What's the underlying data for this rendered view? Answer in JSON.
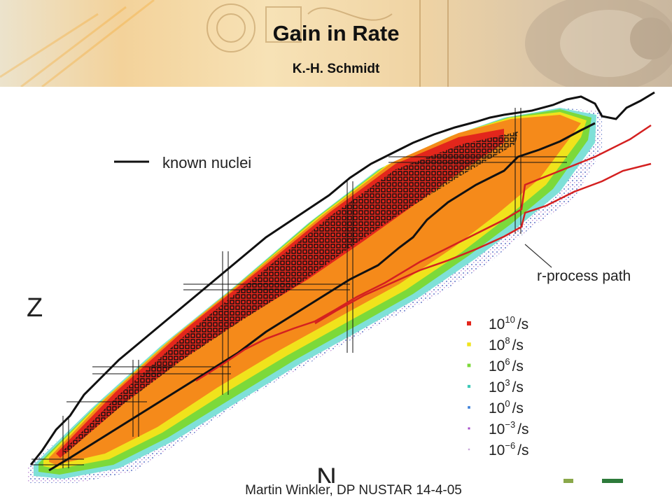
{
  "slide": {
    "title": "Gain in Rate",
    "author": "K.-H. Schmidt",
    "footer": "Martin Winkler, DP NUSTAR 14-4-05"
  },
  "chart": {
    "known_nuclei_label": "known nuclei",
    "r_process_label": "r-process path",
    "z_axis_label": "Z",
    "n_axis_label": "N",
    "legend": [
      {
        "base": "10",
        "exp": "10",
        "unit": "/s",
        "color": "#e3261c"
      },
      {
        "base": "10",
        "exp": "8",
        "unit": "/s",
        "color": "#f0e31c"
      },
      {
        "base": "10",
        "exp": "6",
        "unit": "/s",
        "color": "#7cd93a"
      },
      {
        "base": "10",
        "exp": "3",
        "unit": "/s",
        "color": "#3dc9b8"
      },
      {
        "base": "10",
        "exp": "0",
        "unit": "/s",
        "color": "#3a7fd9"
      },
      {
        "base": "10",
        "exp": "−3",
        "unit": "/s",
        "color": "#a64cc9"
      },
      {
        "base": "10",
        "exp": "−6",
        "unit": "/s",
        "color": "#c9a6d9"
      }
    ],
    "colors": {
      "known_nuclei_line": "#111111",
      "r_process_line": "#d42020",
      "orange_band": "#f58a1a",
      "cyan_band": "#7fe0d8"
    }
  }
}
